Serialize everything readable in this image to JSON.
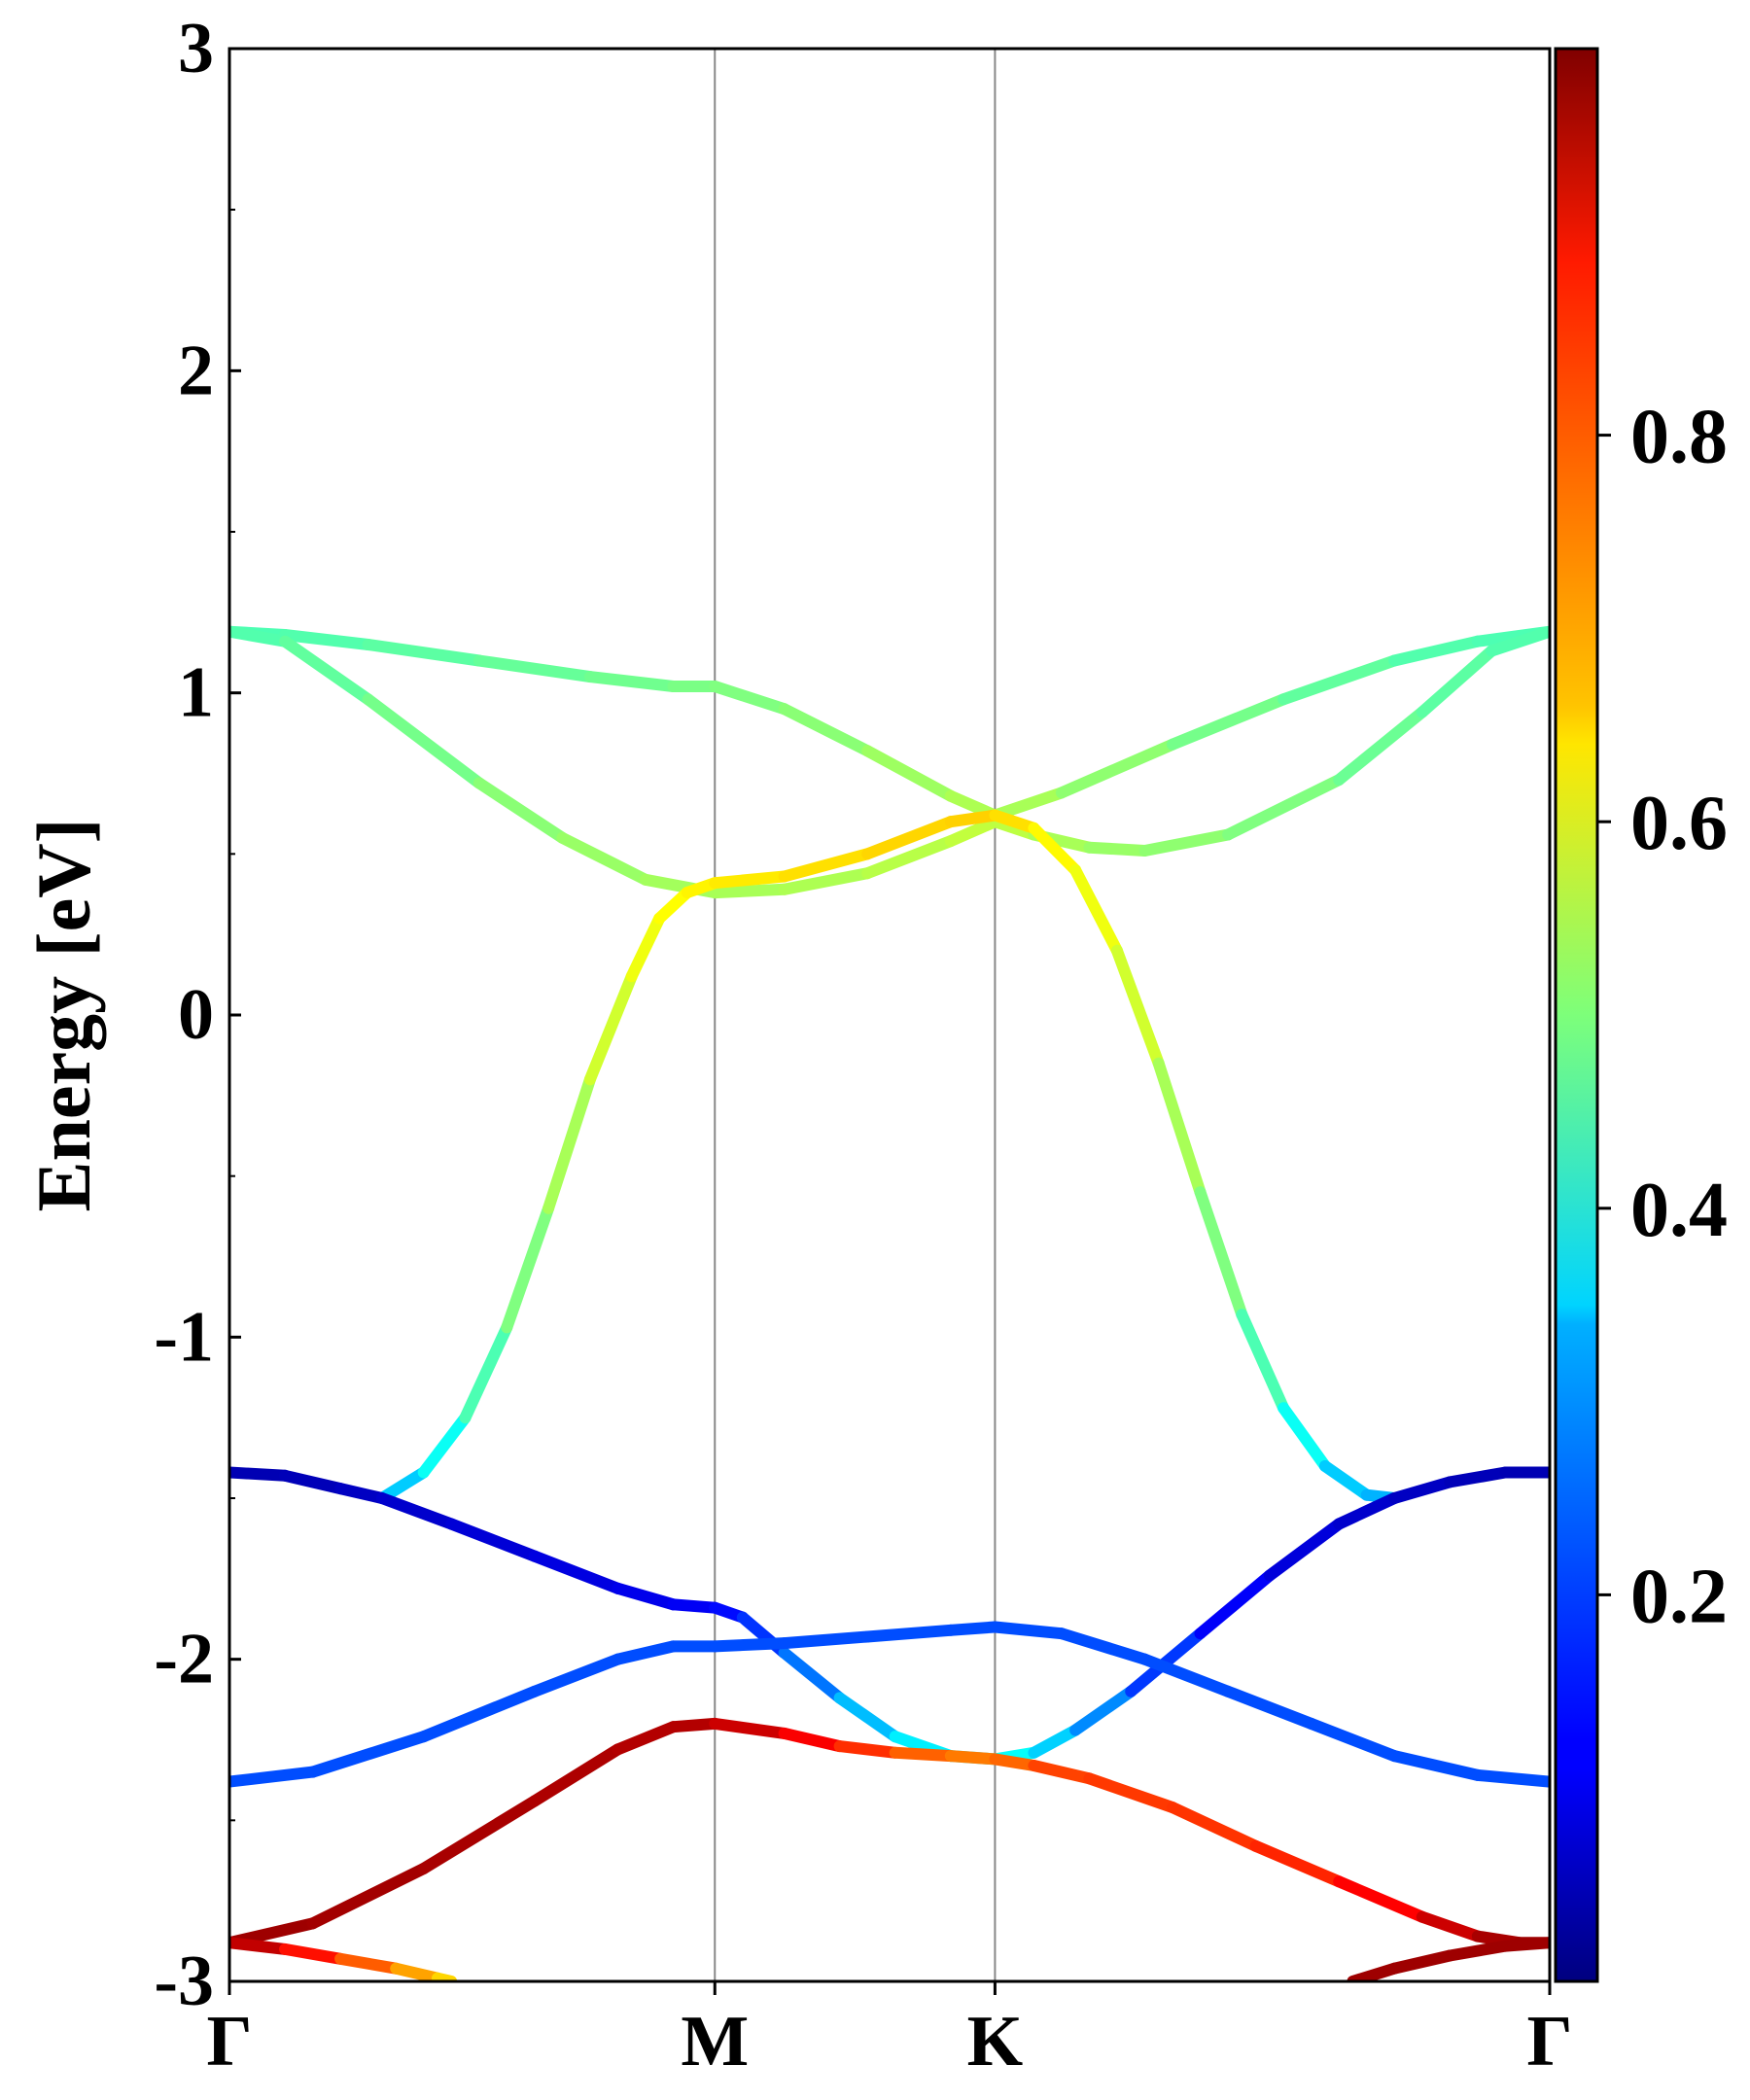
{
  "chart_data": {
    "type": "line",
    "title": "",
    "xlabel": "",
    "ylabel": "Energy [eV]",
    "ylim": [
      -3,
      3
    ],
    "y_ticks": [
      -3,
      -2,
      -1,
      0,
      1,
      2,
      3
    ],
    "y_tick_labels": [
      "-3",
      "-2",
      "-1",
      "0",
      "1",
      "2",
      "3"
    ],
    "x_ticks": [
      0,
      1.75,
      2.76,
      4.76
    ],
    "x_tick_labels": [
      "Γ",
      "M",
      "K",
      "Γ"
    ],
    "xlim": [
      0,
      4.76
    ],
    "colorbar": {
      "colormap": "jet",
      "range": [
        0,
        1
      ],
      "ticks": [
        0.2,
        0.4,
        0.6,
        0.8
      ],
      "tick_labels": [
        "0.2",
        "0.4",
        "0.6",
        "0.8"
      ]
    },
    "grid": false,
    "legend": "none",
    "series": [
      {
        "x": [
          0,
          0.2,
          0.5,
          0.9,
          1.3,
          1.6,
          1.75,
          2.0,
          2.3,
          2.6,
          2.76,
          3.0,
          3.4,
          3.8,
          4.2,
          4.5,
          4.76
        ],
        "y": [
          1.19,
          1.18,
          1.15,
          1.1,
          1.05,
          1.02,
          1.02,
          0.95,
          0.82,
          0.68,
          0.62,
          0.69,
          0.84,
          0.98,
          1.1,
          1.16,
          1.19
        ],
        "c": [
          0.45,
          0.45,
          0.46,
          0.47,
          0.48,
          0.49,
          0.5,
          0.5,
          0.52,
          0.54,
          0.55,
          0.53,
          0.5,
          0.48,
          0.46,
          0.45,
          0.45
        ]
      },
      {
        "x": [
          0,
          0.2,
          0.5,
          0.9,
          1.2,
          1.5,
          1.75,
          2.0,
          2.3,
          2.6,
          2.76,
          2.9,
          3.1,
          3.3,
          3.6,
          4.0,
          4.3,
          4.55,
          4.76
        ],
        "y": [
          1.19,
          1.16,
          0.98,
          0.72,
          0.55,
          0.42,
          0.38,
          0.39,
          0.44,
          0.54,
          0.6,
          0.56,
          0.52,
          0.51,
          0.56,
          0.73,
          0.94,
          1.13,
          1.19
        ],
        "c": [
          0.45,
          0.46,
          0.48,
          0.5,
          0.52,
          0.53,
          0.54,
          0.54,
          0.55,
          0.56,
          0.57,
          0.55,
          0.53,
          0.52,
          0.51,
          0.49,
          0.47,
          0.46,
          0.45
        ]
      },
      {
        "x": [
          0.55,
          0.7,
          0.85,
          1.0,
          1.15,
          1.3,
          1.45,
          1.55,
          1.65,
          1.75,
          2.0,
          2.3,
          2.6,
          2.76,
          2.9,
          3.05,
          3.2,
          3.35,
          3.5,
          3.65,
          3.8,
          3.95,
          4.1,
          4.2
        ],
        "y": [
          -1.5,
          -1.42,
          -1.25,
          -0.97,
          -0.6,
          -0.2,
          0.12,
          0.3,
          0.38,
          0.41,
          0.43,
          0.5,
          0.6,
          0.62,
          0.58,
          0.45,
          0.2,
          -0.15,
          -0.55,
          -0.93,
          -1.22,
          -1.4,
          -1.49,
          -1.5
        ],
        "c": [
          0.3,
          0.35,
          0.42,
          0.48,
          0.52,
          0.56,
          0.6,
          0.62,
          0.63,
          0.64,
          0.65,
          0.66,
          0.67,
          0.67,
          0.64,
          0.62,
          0.6,
          0.56,
          0.52,
          0.48,
          0.42,
          0.35,
          0.3,
          0.3
        ]
      },
      {
        "x": [
          0,
          0.2,
          0.4,
          0.55,
          0.8,
          1.1,
          1.4,
          1.6,
          1.75,
          1.85,
          2.0,
          2.2,
          2.4,
          2.6,
          2.76
        ],
        "y": [
          -1.42,
          -1.43,
          -1.47,
          -1.5,
          -1.58,
          -1.68,
          -1.78,
          -1.83,
          -1.84,
          -1.87,
          -1.98,
          -2.12,
          -2.24,
          -2.3,
          -2.31
        ],
        "c": [
          0.05,
          0.05,
          0.06,
          0.07,
          0.08,
          0.09,
          0.1,
          0.11,
          0.12,
          0.15,
          0.2,
          0.28,
          0.34,
          0.38,
          0.4
        ]
      },
      {
        "x": [
          2.76,
          2.9,
          3.05,
          3.25,
          3.5,
          3.75,
          4.0,
          4.2,
          4.4,
          4.6,
          4.76
        ],
        "y": [
          -2.31,
          -2.29,
          -2.22,
          -2.1,
          -1.92,
          -1.74,
          -1.58,
          -1.5,
          -1.45,
          -1.42,
          -1.42
        ],
        "c": [
          0.4,
          0.36,
          0.3,
          0.22,
          0.14,
          0.1,
          0.08,
          0.07,
          0.06,
          0.05,
          0.05
        ]
      },
      {
        "x": [
          0,
          0.3,
          0.7,
          1.1,
          1.4,
          1.6,
          1.75,
          2.0,
          2.3,
          2.6,
          2.76,
          3.0,
          3.3,
          3.6,
          3.9,
          4.2,
          4.5,
          4.76
        ],
        "y": [
          -2.38,
          -2.35,
          -2.24,
          -2.1,
          -2.0,
          -1.96,
          -1.96,
          -1.95,
          -1.93,
          -1.91,
          -1.9,
          -1.92,
          -2.0,
          -2.1,
          -2.2,
          -2.3,
          -2.36,
          -2.38
        ],
        "c": [
          0.2,
          0.2,
          0.2,
          0.2,
          0.2,
          0.2,
          0.2,
          0.2,
          0.2,
          0.2,
          0.2,
          0.2,
          0.2,
          0.2,
          0.2,
          0.2,
          0.2,
          0.2
        ]
      },
      {
        "x": [
          0,
          0.3,
          0.7,
          1.1,
          1.4,
          1.6,
          1.75,
          2.0,
          2.2,
          2.4,
          2.6,
          2.76,
          2.9,
          3.1,
          3.4,
          3.7,
          4.0,
          4.3,
          4.5,
          4.65,
          4.76
        ],
        "y": [
          -2.88,
          -2.82,
          -2.65,
          -2.44,
          -2.28,
          -2.21,
          -2.2,
          -2.23,
          -2.27,
          -2.29,
          -2.3,
          -2.31,
          -2.33,
          -2.37,
          -2.46,
          -2.58,
          -2.69,
          -2.8,
          -2.86,
          -2.88,
          -2.88
        ],
        "c": [
          0.97,
          0.97,
          0.96,
          0.96,
          0.95,
          0.95,
          0.95,
          0.9,
          0.86,
          0.8,
          0.76,
          0.75,
          0.8,
          0.82,
          0.82,
          0.83,
          0.85,
          0.9,
          0.95,
          0.97,
          0.97
        ]
      },
      {
        "x": [
          0,
          0.2,
          0.4,
          0.6,
          0.75,
          0.8
        ],
        "y": [
          -2.88,
          -2.9,
          -2.93,
          -2.96,
          -2.99,
          -3.0
        ],
        "c": [
          0.97,
          0.9,
          0.82,
          0.75,
          0.68,
          0.65
        ]
      },
      {
        "x": [
          4.05,
          4.2,
          4.4,
          4.6,
          4.76
        ],
        "y": [
          -3.0,
          -2.96,
          -2.92,
          -2.89,
          -2.88
        ],
        "c": [
          0.97,
          0.97,
          0.97,
          0.97,
          0.97
        ]
      }
    ]
  }
}
